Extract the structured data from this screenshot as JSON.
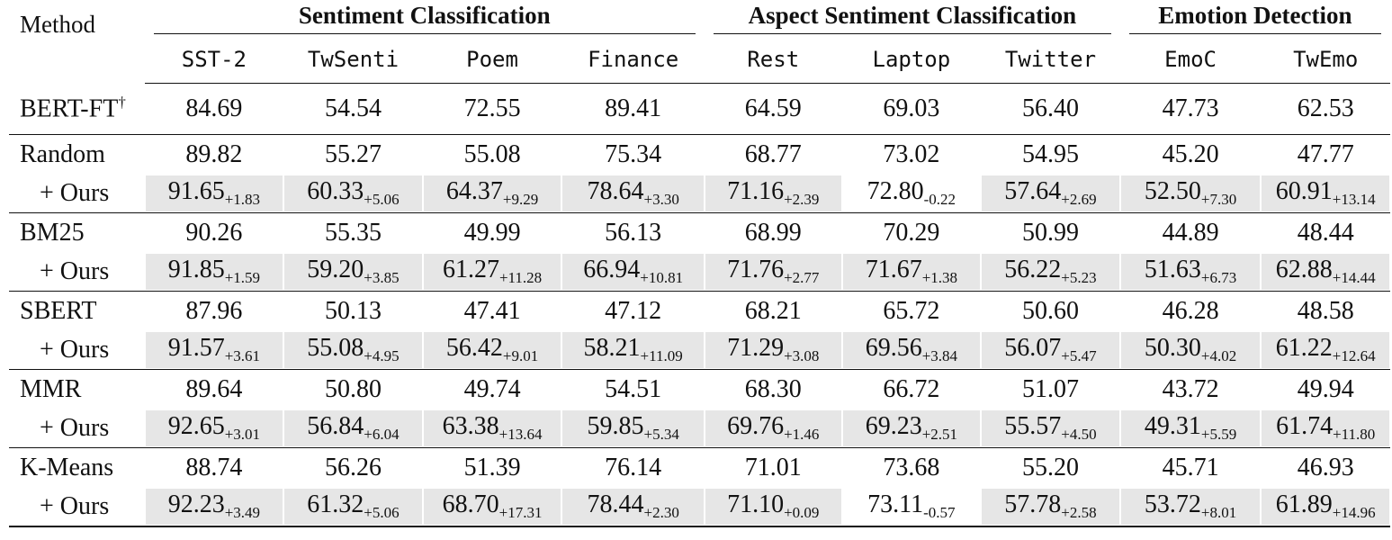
{
  "table": {
    "method_header": "Method",
    "groups": [
      {
        "label": "Sentiment Classification",
        "span": 4
      },
      {
        "label": "Aspect Sentiment Classification",
        "span": 3
      },
      {
        "label": "Emotion Detection",
        "span": 2
      }
    ],
    "columns": [
      "SST-2",
      "TwSenti",
      "Poem",
      "Finance",
      "Rest",
      "Laptop",
      "Twitter",
      "EmoC",
      "TwEmo"
    ],
    "bert": {
      "method": "BERT-FT",
      "sup": "†",
      "values": [
        "84.69",
        "54.54",
        "72.55",
        "89.41",
        "64.59",
        "69.03",
        "56.40",
        "47.73",
        "62.53"
      ]
    },
    "blocks": [
      {
        "method": "Random",
        "values": [
          "89.82",
          "55.27",
          "55.08",
          "75.34",
          "68.77",
          "73.02",
          "54.95",
          "45.20",
          "47.77"
        ],
        "ours_label": "+ Ours",
        "ours": [
          {
            "v": "91.65",
            "d": "+1.83",
            "hl": true
          },
          {
            "v": "60.33",
            "d": "+5.06",
            "hl": true
          },
          {
            "v": "64.37",
            "d": "+9.29",
            "hl": true
          },
          {
            "v": "78.64",
            "d": "+3.30",
            "hl": true
          },
          {
            "v": "71.16",
            "d": "+2.39",
            "hl": true
          },
          {
            "v": "72.80",
            "d": "-0.22",
            "hl": false
          },
          {
            "v": "57.64",
            "d": "+2.69",
            "hl": true
          },
          {
            "v": "52.50",
            "d": "+7.30",
            "hl": true
          },
          {
            "v": "60.91",
            "d": "+13.14",
            "hl": true
          }
        ]
      },
      {
        "method": "BM25",
        "values": [
          "90.26",
          "55.35",
          "49.99",
          "56.13",
          "68.99",
          "70.29",
          "50.99",
          "44.89",
          "48.44"
        ],
        "ours_label": "+ Ours",
        "ours": [
          {
            "v": "91.85",
            "d": "+1.59",
            "hl": true
          },
          {
            "v": "59.20",
            "d": "+3.85",
            "hl": true
          },
          {
            "v": "61.27",
            "d": "+11.28",
            "hl": true
          },
          {
            "v": "66.94",
            "d": "+10.81",
            "hl": true
          },
          {
            "v": "71.76",
            "d": "+2.77",
            "hl": true
          },
          {
            "v": "71.67",
            "d": "+1.38",
            "hl": true
          },
          {
            "v": "56.22",
            "d": "+5.23",
            "hl": true
          },
          {
            "v": "51.63",
            "d": "+6.73",
            "hl": true
          },
          {
            "v": "62.88",
            "d": "+14.44",
            "hl": true
          }
        ]
      },
      {
        "method": "SBERT",
        "values": [
          "87.96",
          "50.13",
          "47.41",
          "47.12",
          "68.21",
          "65.72",
          "50.60",
          "46.28",
          "48.58"
        ],
        "ours_label": "+ Ours",
        "ours": [
          {
            "v": "91.57",
            "d": "+3.61",
            "hl": true
          },
          {
            "v": "55.08",
            "d": "+4.95",
            "hl": true
          },
          {
            "v": "56.42",
            "d": "+9.01",
            "hl": true
          },
          {
            "v": "58.21",
            "d": "+11.09",
            "hl": true
          },
          {
            "v": "71.29",
            "d": "+3.08",
            "hl": true
          },
          {
            "v": "69.56",
            "d": "+3.84",
            "hl": true
          },
          {
            "v": "56.07",
            "d": "+5.47",
            "hl": true
          },
          {
            "v": "50.30",
            "d": "+4.02",
            "hl": true
          },
          {
            "v": "61.22",
            "d": "+12.64",
            "hl": true
          }
        ]
      },
      {
        "method": "MMR",
        "values": [
          "89.64",
          "50.80",
          "49.74",
          "54.51",
          "68.30",
          "66.72",
          "51.07",
          "43.72",
          "49.94"
        ],
        "ours_label": "+ Ours",
        "ours": [
          {
            "v": "92.65",
            "d": "+3.01",
            "hl": true
          },
          {
            "v": "56.84",
            "d": "+6.04",
            "hl": true
          },
          {
            "v": "63.38",
            "d": "+13.64",
            "hl": true
          },
          {
            "v": "59.85",
            "d": "+5.34",
            "hl": true
          },
          {
            "v": "69.76",
            "d": "+1.46",
            "hl": true
          },
          {
            "v": "69.23",
            "d": "+2.51",
            "hl": true
          },
          {
            "v": "55.57",
            "d": "+4.50",
            "hl": true
          },
          {
            "v": "49.31",
            "d": "+5.59",
            "hl": true
          },
          {
            "v": "61.74",
            "d": "+11.80",
            "hl": true
          }
        ]
      },
      {
        "method": "K-Means",
        "values": [
          "88.74",
          "56.26",
          "51.39",
          "76.14",
          "71.01",
          "73.68",
          "55.20",
          "45.71",
          "46.93"
        ],
        "ours_label": "+ Ours",
        "ours": [
          {
            "v": "92.23",
            "d": "+3.49",
            "hl": true
          },
          {
            "v": "61.32",
            "d": "+5.06",
            "hl": true
          },
          {
            "v": "68.70",
            "d": "+17.31",
            "hl": true
          },
          {
            "v": "78.44",
            "d": "+2.30",
            "hl": true
          },
          {
            "v": "71.10",
            "d": "+0.09",
            "hl": true
          },
          {
            "v": "73.11",
            "d": "-0.57",
            "hl": false
          },
          {
            "v": "57.78",
            "d": "+2.58",
            "hl": true
          },
          {
            "v": "53.72",
            "d": "+8.01",
            "hl": true
          },
          {
            "v": "61.89",
            "d": "+14.96",
            "hl": true
          }
        ]
      }
    ],
    "colors": {
      "highlight": "#e6e6e6",
      "text": "#111111"
    }
  }
}
